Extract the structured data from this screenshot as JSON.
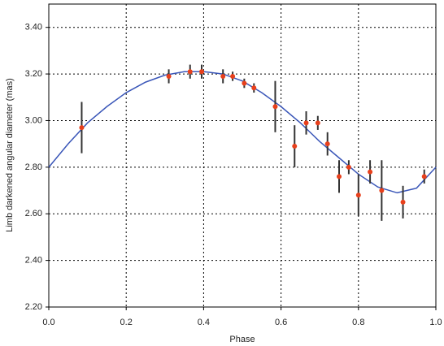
{
  "chart_data": {
    "type": "scatter",
    "xlabel": "Phase",
    "ylabel": "Limb darkened angular diameter (mas)",
    "xlim": [
      0,
      1
    ],
    "ylim": [
      2.2,
      3.5
    ],
    "xticks": [
      {
        "value": 0,
        "label": "0.0"
      },
      0.2,
      0.4,
      0.6,
      0.8,
      {
        "value": 1,
        "label": "1.0"
      }
    ],
    "yticks": [
      {
        "value": 2.2,
        "label": "2.20"
      },
      {
        "value": 2.4,
        "label": "2.40"
      },
      {
        "value": 2.6,
        "label": "2.60"
      },
      {
        "value": 2.8,
        "label": "2.80"
      },
      {
        "value": 3.0,
        "label": "3.00"
      },
      {
        "value": 3.2,
        "label": "3.20"
      },
      {
        "value": 3.4,
        "label": "3.40"
      }
    ],
    "grid": true,
    "series": [
      {
        "type": "line",
        "color": "#3a56b8",
        "x": [
          0,
          0.05,
          0.1,
          0.15,
          0.2,
          0.25,
          0.3,
          0.35,
          0.4,
          0.45,
          0.5,
          0.55,
          0.6,
          0.65,
          0.7,
          0.75,
          0.8,
          0.85,
          0.9,
          0.95,
          1.0
        ],
        "values": [
          2.8,
          2.9,
          2.99,
          3.06,
          3.12,
          3.165,
          3.195,
          3.21,
          3.21,
          3.2,
          3.17,
          3.12,
          3.06,
          2.99,
          2.91,
          2.84,
          2.77,
          2.715,
          2.69,
          2.71,
          2.8
        ]
      },
      {
        "type": "scatter",
        "color": "#e8401c",
        "error_color": "#333333",
        "x": [
          0.085,
          0.31,
          0.365,
          0.395,
          0.45,
          0.475,
          0.505,
          0.53,
          0.585,
          0.635,
          0.665,
          0.695,
          0.72,
          0.75,
          0.775,
          0.8,
          0.83,
          0.86,
          0.915,
          0.97
        ],
        "values": [
          2.97,
          3.19,
          3.21,
          3.21,
          3.19,
          3.19,
          3.16,
          3.14,
          3.06,
          2.89,
          2.99,
          2.99,
          2.9,
          2.76,
          2.8,
          2.68,
          2.78,
          2.7,
          2.65,
          2.76
        ],
        "errors": [
          0.11,
          0.03,
          0.03,
          0.03,
          0.03,
          0.02,
          0.02,
          0.02,
          0.11,
          0.09,
          0.05,
          0.03,
          0.05,
          0.07,
          0.03,
          0.09,
          0.05,
          0.13,
          0.07,
          0.03
        ]
      }
    ]
  }
}
